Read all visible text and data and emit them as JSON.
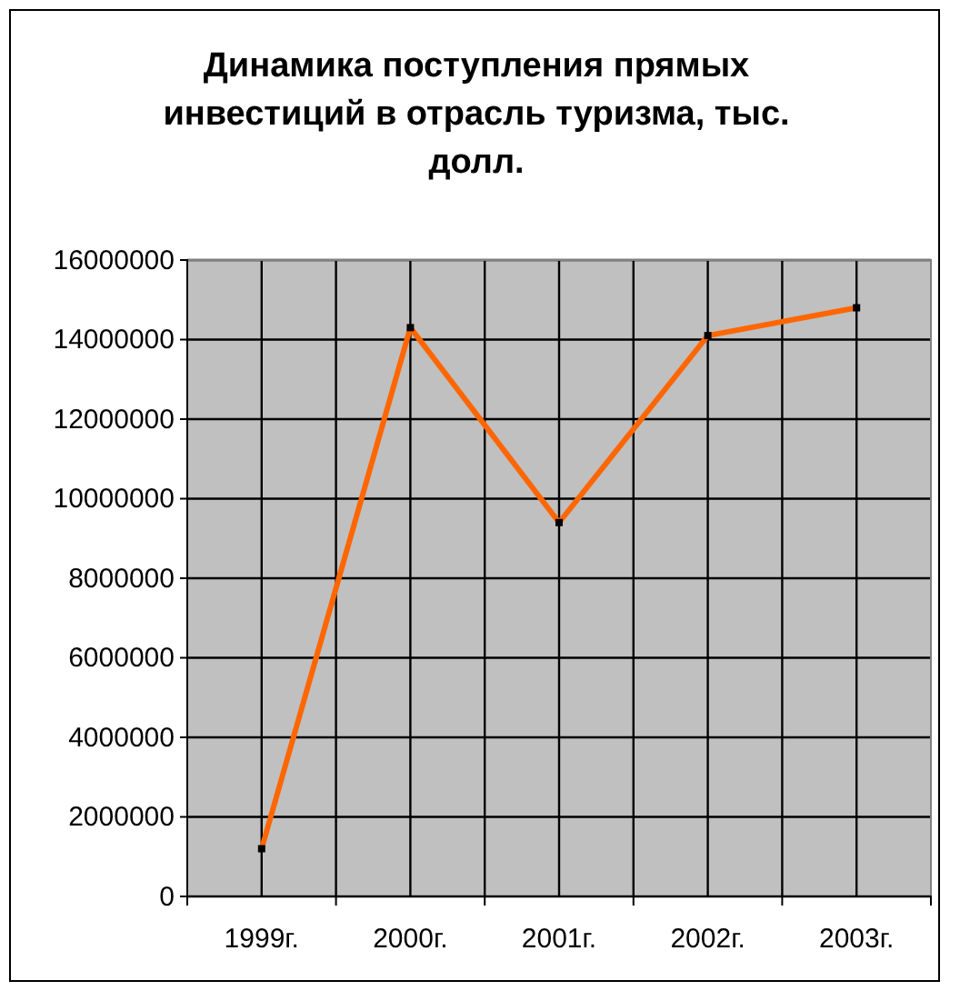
{
  "chart_data": {
    "type": "line",
    "title": "Динамика поступления прямых инвестиций в отрасль туризма, тыс. долл.",
    "categories": [
      "1999г.",
      "2000г.",
      "2001г.",
      "2002г.",
      "2003г."
    ],
    "series": [
      {
        "color": "#ff6600",
        "values": [
          1200000,
          14300000,
          9400000,
          14100000,
          14800000
        ]
      }
    ],
    "ylim": [
      0,
      16000000
    ],
    "yticks": [
      0,
      2000000,
      4000000,
      6000000,
      8000000,
      10000000,
      12000000,
      14000000,
      16000000
    ],
    "grid": true,
    "marker": "square",
    "line_style": "solid"
  }
}
